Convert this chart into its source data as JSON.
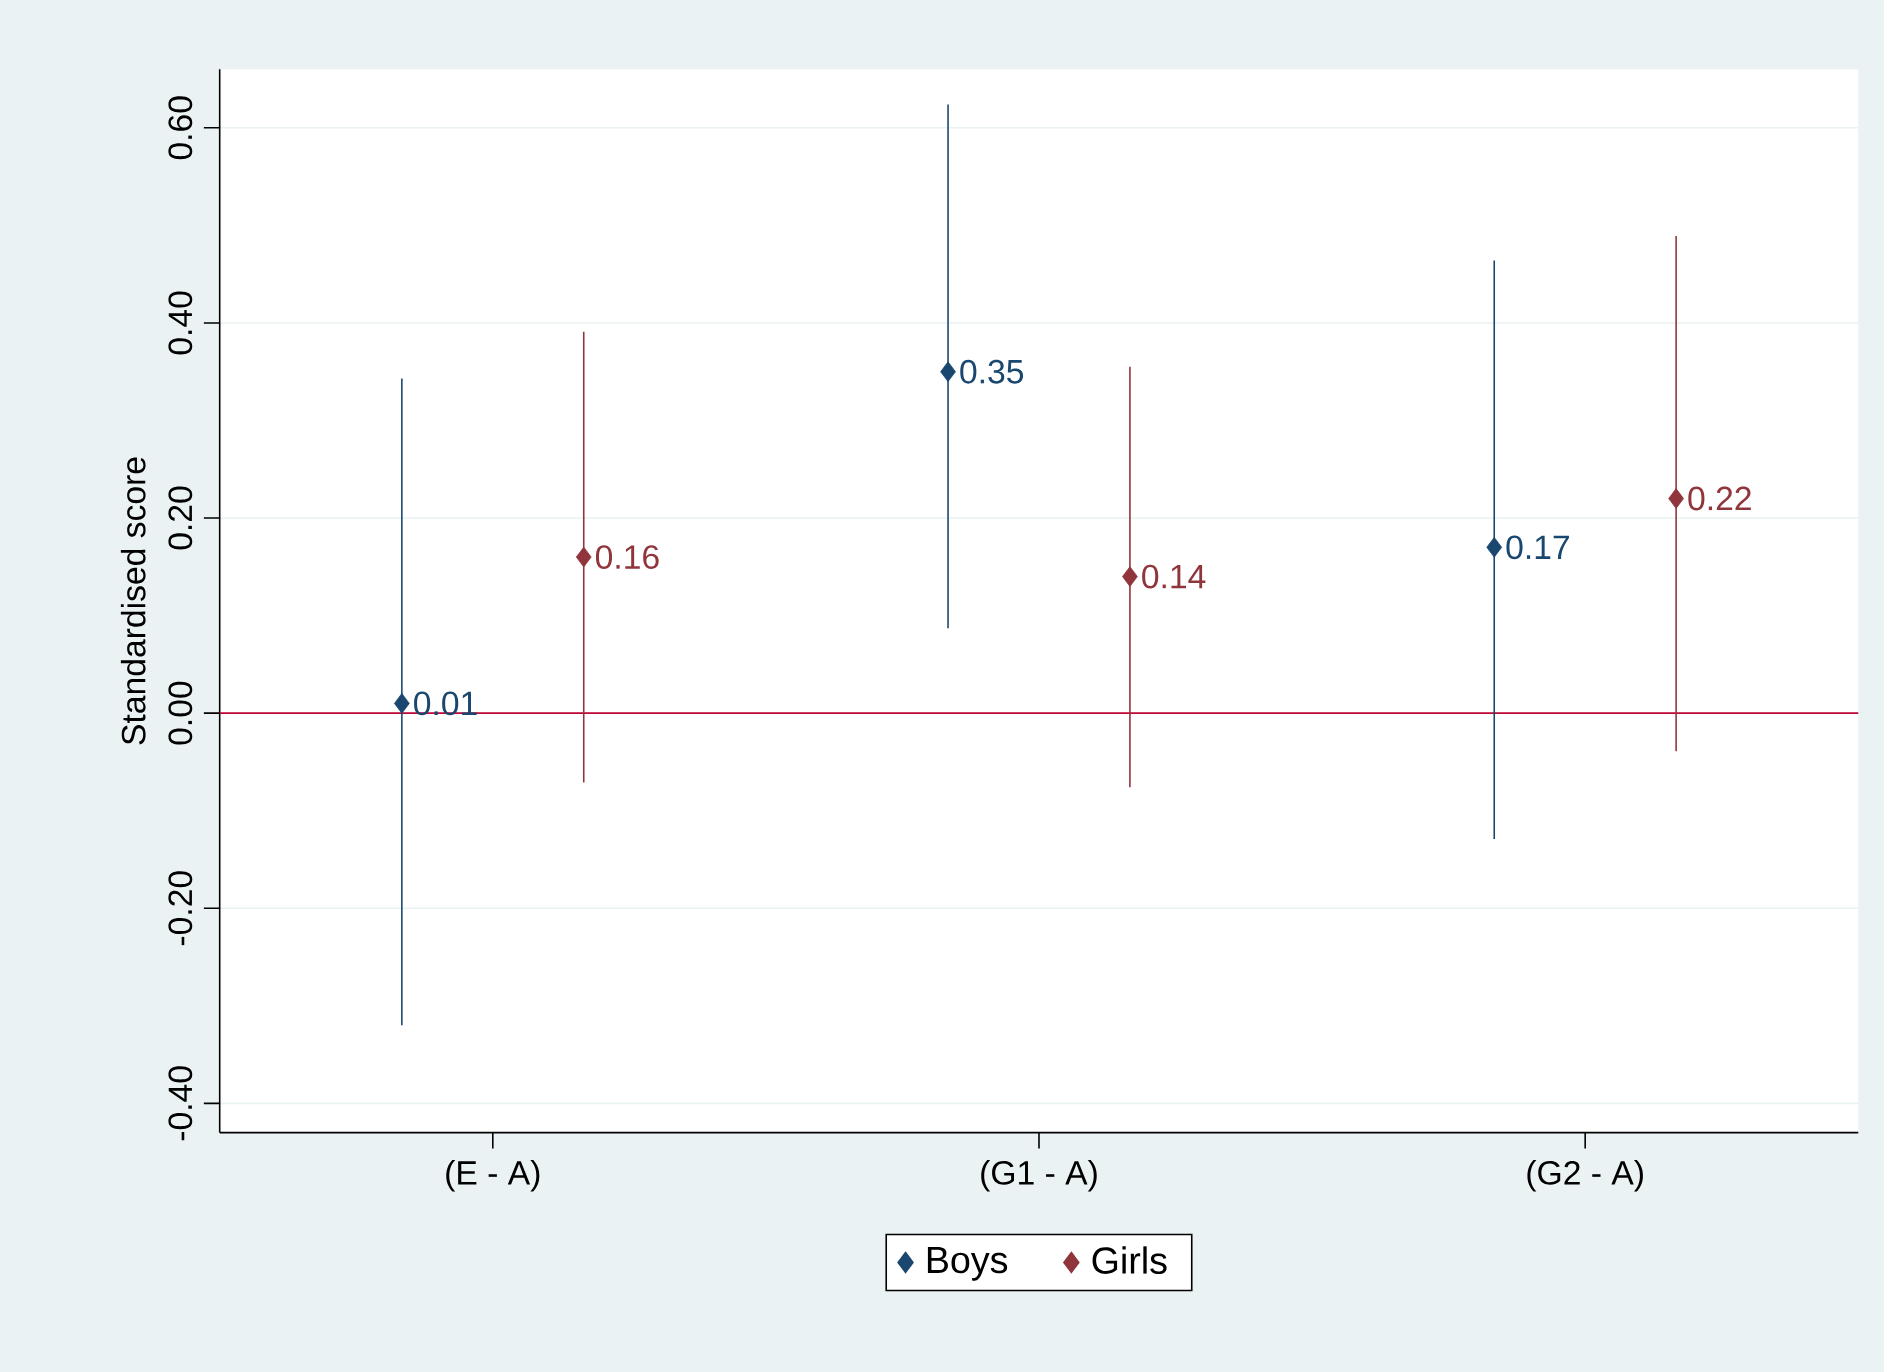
{
  "chart_data": {
    "type": "scatter",
    "ylabel": "Standardised score",
    "categories": [
      "(E - A)",
      "(G1 - A)",
      "(G2 - A)"
    ],
    "series": [
      {
        "name": "Boys",
        "color": "#1a476f",
        "values": [
          0.01,
          0.35,
          0.17
        ],
        "errors": [
          [
            -0.32,
            0.343
          ],
          [
            0.087,
            0.624
          ],
          [
            -0.129,
            0.464
          ]
        ]
      },
      {
        "name": "Girls",
        "color": "#90353b",
        "values": [
          0.16,
          0.14,
          0.22
        ],
        "errors": [
          [
            -0.071,
            0.391
          ],
          [
            -0.076,
            0.355
          ],
          [
            -0.039,
            0.489
          ]
        ]
      }
    ],
    "ylim": [
      -0.43,
      0.66
    ],
    "yticks": [
      {
        "value": -0.4,
        "label": "-0.40"
      },
      {
        "value": -0.2,
        "label": "-0.20"
      },
      {
        "value": 0,
        "label": "0.00"
      },
      {
        "value": 0.2,
        "label": "0.20"
      },
      {
        "value": 0.4,
        "label": "0.40"
      },
      {
        "value": 0.6,
        "label": "0.60"
      }
    ],
    "ref_lines": [
      {
        "axis": "y",
        "value": 0,
        "color": "#c10534"
      }
    ],
    "grid": "y",
    "legend": "bottom",
    "marker": "diamond",
    "data_labels": true
  }
}
